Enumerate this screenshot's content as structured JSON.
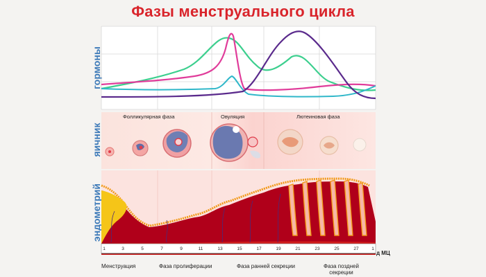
{
  "title": "Фазы менструального цикла",
  "axes": {
    "hormones": "гормоны",
    "ovary": "яичник",
    "endometrium": "эндометрий"
  },
  "ovary_phases": {
    "follicular": "Фолликулярная фаза",
    "ovulation": "Овуляция",
    "luteal": "Лютеиновая фаза"
  },
  "cycle_days": [
    "1",
    "3",
    "5",
    "7",
    "9",
    "11",
    "13",
    "15",
    "17",
    "19",
    "21",
    "23",
    "25",
    "27",
    "1"
  ],
  "day_unit": "д МЦ",
  "bottom_phases": {
    "menstruation": "Менструация",
    "proliferation": "Фаза пролиферации",
    "early_secretion": "Фаза ранней секреции",
    "late_secretion_line1": "Фаза поздней",
    "late_secretion_line2": "секреции"
  },
  "colors": {
    "title": "#d9242b",
    "axis_label": "#3c79b8",
    "curve_green": "#3ccf8e",
    "curve_pink": "#e03c9a",
    "curve_cyan": "#2fb7c9",
    "curve_purple": "#5a2a8c",
    "endometrium_dark": "#b0001a",
    "endometrium_orange": "#f29a1a"
  }
}
